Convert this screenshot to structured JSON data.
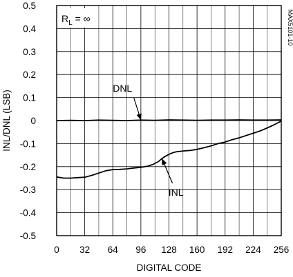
{
  "chart_data": {
    "type": "line",
    "xlabel": "DIGITAL CODE",
    "ylabel": "INL/DNL (LSB)",
    "xlim": [
      0,
      256
    ],
    "ylim": [
      -0.5,
      0.5
    ],
    "x_ticks": [
      0,
      32,
      64,
      96,
      128,
      160,
      192,
      224,
      256
    ],
    "x_tick_labels": [
      "0",
      "32",
      "64",
      "96",
      "128",
      "160",
      "192",
      "224",
      "256"
    ],
    "y_ticks": [
      0.5,
      0.4,
      0.3,
      0.2,
      0.1,
      0,
      -0.1,
      -0.2,
      -0.3,
      -0.4,
      -0.5
    ],
    "y_tick_labels": [
      "0.5",
      "0.4",
      "0.3",
      "0.2",
      "0.1",
      "0",
      "-0.1",
      "-0.2",
      "-0.3",
      "-0.4",
      "-0.5"
    ],
    "grid": true,
    "condition_label": "RL = ∞",
    "figure_code": "MAX5101-10",
    "series": [
      {
        "name": "DNL",
        "x": [
          0,
          16,
          32,
          48,
          64,
          80,
          96,
          112,
          128,
          144,
          160,
          176,
          192,
          208,
          224,
          240,
          256
        ],
        "values": [
          0.0,
          0.001,
          0.0,
          0.002,
          0.001,
          0.0,
          0.002,
          0.001,
          0.003,
          0.002,
          0.001,
          0.002,
          0.002,
          0.003,
          0.002,
          0.002,
          0.003
        ]
      },
      {
        "name": "INL",
        "x": [
          0,
          8,
          16,
          24,
          32,
          40,
          48,
          56,
          64,
          72,
          80,
          88,
          96,
          104,
          110,
          116,
          120,
          124,
          128,
          132,
          136,
          144,
          152,
          160,
          168,
          176,
          184,
          192,
          200,
          208,
          216,
          224,
          232,
          240,
          248,
          256
        ],
        "values": [
          -0.245,
          -0.25,
          -0.25,
          -0.248,
          -0.246,
          -0.238,
          -0.228,
          -0.218,
          -0.213,
          -0.212,
          -0.21,
          -0.206,
          -0.203,
          -0.198,
          -0.19,
          -0.178,
          -0.165,
          -0.155,
          -0.147,
          -0.14,
          -0.136,
          -0.132,
          -0.13,
          -0.125,
          -0.118,
          -0.11,
          -0.1,
          -0.093,
          -0.083,
          -0.075,
          -0.065,
          -0.055,
          -0.045,
          -0.032,
          -0.018,
          -0.002
        ]
      }
    ],
    "annotations": [
      {
        "text": "DNL",
        "points_to_x": 96,
        "points_to_y": 0.002
      },
      {
        "text": "INL",
        "points_to_x": 120,
        "points_to_y": -0.165
      }
    ]
  }
}
